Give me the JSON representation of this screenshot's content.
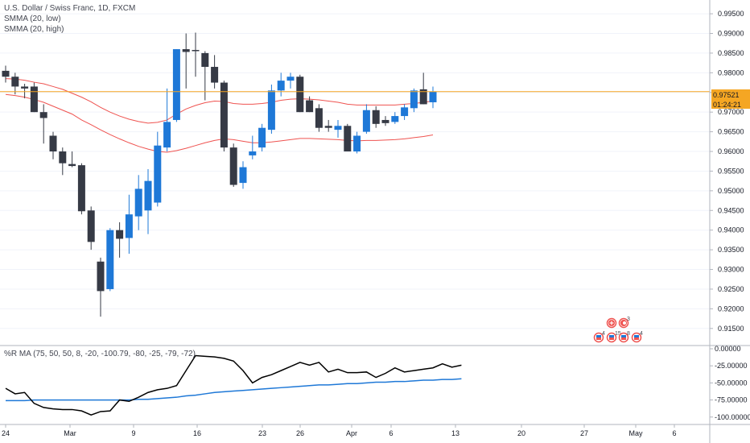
{
  "legend": {
    "symbol": "U.S. Dollar / Swiss Franc, 1D, FXCM",
    "ind1": "SMMA (20, low)",
    "ind2": "SMMA (20, high)"
  },
  "osc": {
    "label": "%R MA (75, 50, 50, 8, -20, -100.79, -80, -25, -79, -72)"
  },
  "price_axis": [
    "0.99500",
    "0.99000",
    "0.98500",
    "0.98000",
    "0.97500",
    "0.97000",
    "0.96500",
    "0.96000",
    "0.95500",
    "0.95000",
    "0.94500",
    "0.94000",
    "0.93500",
    "0.93000",
    "0.92500",
    "0.92000",
    "0.91500"
  ],
  "osc_axis": [
    "0.00000",
    "-25.00000",
    "-50.00000",
    "-75.00000",
    "-100.00000"
  ],
  "time_axis": [
    "24",
    "Mar",
    "9",
    "16",
    "23",
    "26",
    "Apr",
    "6",
    "13",
    "20",
    "27",
    "May",
    "6"
  ],
  "last_price": {
    "value": "0.97521",
    "countdown": "01:24:21"
  },
  "events": [
    {
      "kind": "plus",
      "count": ""
    },
    {
      "kind": "c",
      "count": "3"
    },
    {
      "kind": "flag",
      "count": "4"
    },
    {
      "kind": "flag",
      "count": "15"
    },
    {
      "kind": "flag",
      "count": "8"
    },
    {
      "kind": "flag",
      "count": "4"
    }
  ],
  "colors": {
    "up": "#1e78d7",
    "down": "#363a45",
    "smma": "#ef5350",
    "last_price_line": "#f5a623",
    "osc_line": "#000000",
    "osc_ma": "#1e78d7"
  },
  "chart_data": {
    "type": "candlestick",
    "title": "U.S. Dollar / Swiss Franc, 1D, FXCM",
    "ylim": [
      0.9125,
      0.9985
    ],
    "candles": [
      {
        "o": 0.9805,
        "h": 0.9818,
        "l": 0.9775,
        "c": 0.979
      },
      {
        "o": 0.979,
        "h": 0.98,
        "l": 0.9745,
        "c": 0.9765
      },
      {
        "o": 0.9765,
        "h": 0.9772,
        "l": 0.9735,
        "c": 0.976
      },
      {
        "o": 0.9765,
        "h": 0.9775,
        "l": 0.97,
        "c": 0.97
      },
      {
        "o": 0.97,
        "h": 0.972,
        "l": 0.962,
        "c": 0.9685
      },
      {
        "o": 0.964,
        "h": 0.965,
        "l": 0.958,
        "c": 0.96
      },
      {
        "o": 0.96,
        "h": 0.961,
        "l": 0.954,
        "c": 0.957
      },
      {
        "o": 0.9568,
        "h": 0.96,
        "l": 0.956,
        "c": 0.9563
      },
      {
        "o": 0.9565,
        "h": 0.957,
        "l": 0.944,
        "c": 0.9448
      },
      {
        "o": 0.945,
        "h": 0.946,
        "l": 0.935,
        "c": 0.937
      },
      {
        "o": 0.932,
        "h": 0.933,
        "l": 0.918,
        "c": 0.9245
      },
      {
        "o": 0.925,
        "h": 0.9405,
        "l": 0.9245,
        "c": 0.94
      },
      {
        "o": 0.94,
        "h": 0.942,
        "l": 0.933,
        "c": 0.9378
      },
      {
        "o": 0.938,
        "h": 0.949,
        "l": 0.934,
        "c": 0.944
      },
      {
        "o": 0.9435,
        "h": 0.954,
        "l": 0.94,
        "c": 0.9505
      },
      {
        "o": 0.945,
        "h": 0.9555,
        "l": 0.939,
        "c": 0.9525
      },
      {
        "o": 0.947,
        "h": 0.965,
        "l": 0.946,
        "c": 0.9615
      },
      {
        "o": 0.961,
        "h": 0.976,
        "l": 0.96,
        "c": 0.9675
      },
      {
        "o": 0.968,
        "h": 0.986,
        "l": 0.9675,
        "c": 0.986
      },
      {
        "o": 0.986,
        "h": 0.99,
        "l": 0.976,
        "c": 0.9853
      },
      {
        "o": 0.9858,
        "h": 0.9902,
        "l": 0.979,
        "c": 0.9855
      },
      {
        "o": 0.985,
        "h": 0.9855,
        "l": 0.973,
        "c": 0.9815
      },
      {
        "o": 0.9815,
        "h": 0.9845,
        "l": 0.976,
        "c": 0.9775
      },
      {
        "o": 0.9775,
        "h": 0.978,
        "l": 0.96,
        "c": 0.961
      },
      {
        "o": 0.961,
        "h": 0.962,
        "l": 0.951,
        "c": 0.9515
      },
      {
        "o": 0.952,
        "h": 0.9575,
        "l": 0.9505,
        "c": 0.956
      },
      {
        "o": 0.959,
        "h": 0.964,
        "l": 0.958,
        "c": 0.96
      },
      {
        "o": 0.961,
        "h": 0.967,
        "l": 0.96,
        "c": 0.966
      },
      {
        "o": 0.9655,
        "h": 0.977,
        "l": 0.9645,
        "c": 0.9755
      },
      {
        "o": 0.9755,
        "h": 0.98,
        "l": 0.974,
        "c": 0.978
      },
      {
        "o": 0.978,
        "h": 0.98,
        "l": 0.976,
        "c": 0.979
      },
      {
        "o": 0.979,
        "h": 0.9795,
        "l": 0.97,
        "c": 0.97
      },
      {
        "o": 0.973,
        "h": 0.974,
        "l": 0.97,
        "c": 0.97
      },
      {
        "o": 0.971,
        "h": 0.972,
        "l": 0.965,
        "c": 0.966
      },
      {
        "o": 0.9665,
        "h": 0.968,
        "l": 0.965,
        "c": 0.966
      },
      {
        "o": 0.9655,
        "h": 0.968,
        "l": 0.9635,
        "c": 0.9665
      },
      {
        "o": 0.9665,
        "h": 0.967,
        "l": 0.96,
        "c": 0.96
      },
      {
        "o": 0.96,
        "h": 0.965,
        "l": 0.9595,
        "c": 0.964
      },
      {
        "o": 0.965,
        "h": 0.972,
        "l": 0.9645,
        "c": 0.9705
      },
      {
        "o": 0.9705,
        "h": 0.9715,
        "l": 0.966,
        "c": 0.967
      },
      {
        "o": 0.968,
        "h": 0.969,
        "l": 0.9665,
        "c": 0.9672
      },
      {
        "o": 0.9675,
        "h": 0.97,
        "l": 0.967,
        "c": 0.969
      },
      {
        "o": 0.969,
        "h": 0.972,
        "l": 0.968,
        "c": 0.9712
      },
      {
        "o": 0.971,
        "h": 0.976,
        "l": 0.97,
        "c": 0.9755
      },
      {
        "o": 0.9758,
        "h": 0.98,
        "l": 0.972,
        "c": 0.972
      },
      {
        "o": 0.9725,
        "h": 0.9765,
        "l": 0.971,
        "c": 0.9752
      }
    ],
    "smma_high": [
      0.9785,
      0.9784,
      0.9781,
      0.9776,
      0.9772,
      0.9765,
      0.9758,
      0.9748,
      0.9738,
      0.9726,
      0.9712,
      0.97,
      0.969,
      0.9682,
      0.9676,
      0.9672,
      0.9674,
      0.968,
      0.9695,
      0.9708,
      0.9717,
      0.9724,
      0.9728,
      0.9727,
      0.9722,
      0.972,
      0.972,
      0.9722,
      0.9725,
      0.973,
      0.9733,
      0.9734,
      0.9733,
      0.9731,
      0.9728,
      0.9725,
      0.972,
      0.9718,
      0.9718,
      0.9718,
      0.9718,
      0.9718,
      0.972,
      0.9722,
      0.9725,
      0.9728
    ],
    "smma_low": [
      0.9745,
      0.9742,
      0.9738,
      0.9732,
      0.9725,
      0.9715,
      0.9705,
      0.9695,
      0.968,
      0.9668,
      0.9655,
      0.9643,
      0.9632,
      0.9622,
      0.9613,
      0.9606,
      0.96,
      0.9598,
      0.9602,
      0.9608,
      0.9615,
      0.9622,
      0.9628,
      0.9632,
      0.963,
      0.9626,
      0.9622,
      0.9622,
      0.9624,
      0.9627,
      0.963,
      0.9633,
      0.9633,
      0.9632,
      0.9631,
      0.963,
      0.9628,
      0.9627,
      0.9628,
      0.9628,
      0.9629,
      0.963,
      0.9632,
      0.9635,
      0.9638,
      0.9642
    ],
    "osc_ylim": [
      -105,
      0
    ],
    "osc_r": [
      -58,
      -66,
      -64,
      -80,
      -86,
      -88,
      -89,
      -89,
      -91,
      -97,
      -92,
      -91,
      -75,
      -77,
      -71,
      -64,
      -60,
      -58,
      -54,
      -32,
      -10,
      -11,
      -12,
      -14,
      -18,
      -32,
      -50,
      -42,
      -38,
      -32,
      -26,
      -20,
      -24,
      -20,
      -34,
      -30,
      -35,
      -35,
      -34,
      -42,
      -36,
      -28,
      -34,
      -32,
      -30,
      -28,
      -22,
      -27,
      -24
    ],
    "osc_ma": [
      -76,
      -76,
      -76,
      -75,
      -75,
      -75,
      -75,
      -75,
      -75,
      -75,
      -75,
      -75,
      -75,
      -75,
      -74,
      -74,
      -73,
      -72,
      -71,
      -69,
      -68,
      -66,
      -64,
      -63,
      -62,
      -61,
      -60,
      -59,
      -58,
      -57,
      -56,
      -55,
      -54,
      -53,
      -53,
      -52,
      -51,
      -51,
      -50,
      -49,
      -49,
      -48,
      -48,
      -47,
      -46,
      -46,
      -45,
      -45,
      -44
    ]
  }
}
